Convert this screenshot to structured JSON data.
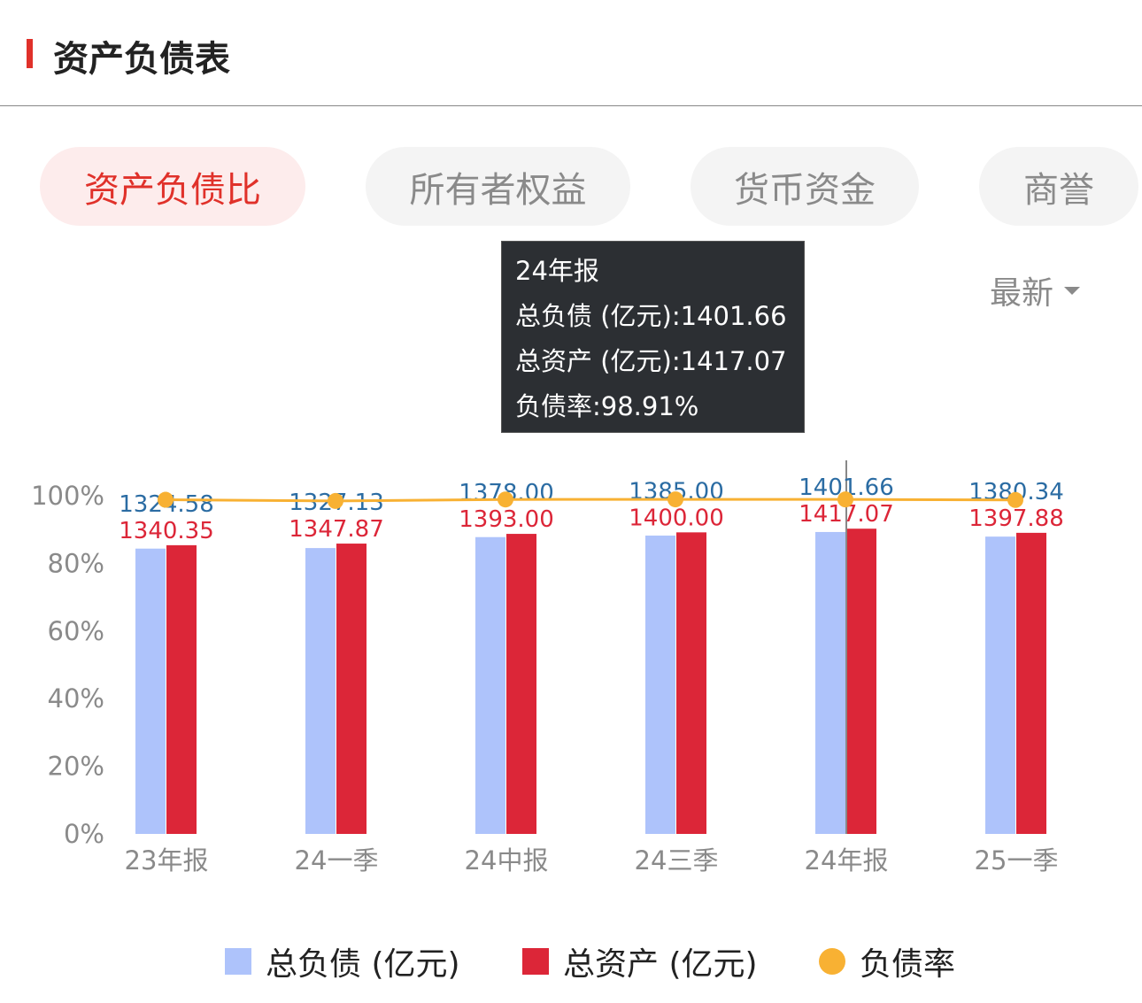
{
  "header": {
    "title": "资产负债表"
  },
  "tabs": [
    {
      "label": "资产负债比",
      "active": true
    },
    {
      "label": "所有者权益"
    },
    {
      "label": "货币资金"
    },
    {
      "label": "商誉"
    }
  ],
  "period_select": {
    "value": "最新"
  },
  "tooltip": {
    "title": "24年报",
    "lines": [
      "总负债 (亿元):1401.66",
      "总资产 (亿元):1417.07",
      "负债率:98.91%"
    ]
  },
  "chart_data": {
    "type": "bar",
    "categories": [
      "23年报",
      "24一季",
      "24中报",
      "24三季",
      "24年报",
      "25一季"
    ],
    "y_ticks": [
      "0%",
      "20%",
      "40%",
      "60%",
      "80%",
      "100%"
    ],
    "ylim": [
      0,
      100
    ],
    "series": [
      {
        "name": "总负债 (亿元)",
        "type": "bar",
        "color": "#aec3fb",
        "label_color": "#2b6ca3",
        "values": [
          1324.58,
          1327.13,
          1378,
          1385,
          1401.66,
          1380.34
        ]
      },
      {
        "name": "总资产 (亿元)",
        "type": "bar",
        "color": "#dc2638",
        "label_color": "#dc2638",
        "values": [
          1340.35,
          1347.87,
          1393,
          1400,
          1417.07,
          1397.88
        ]
      },
      {
        "name": "负债率",
        "type": "line",
        "color": "#f8b133",
        "values": [
          98.82,
          98.46,
          98.9,
          98.93,
          98.91,
          98.75
        ]
      }
    ],
    "highlighted": "24年报"
  }
}
